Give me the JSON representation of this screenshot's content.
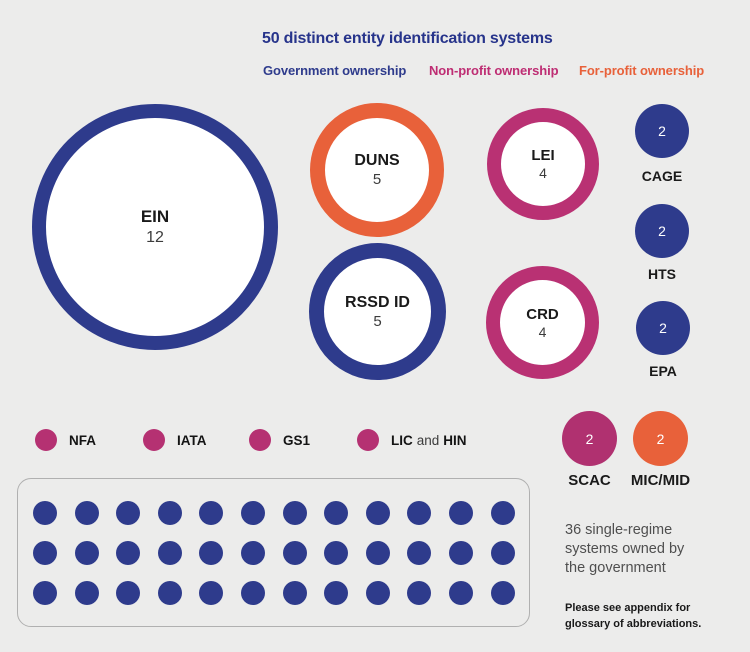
{
  "title": "50 distinct entity identification systems",
  "colors": {
    "background": "#ECECEB",
    "government_blue": "#2E3B8C",
    "non_profit_magenta": "#B93173",
    "for_profit_orange": "#E8613A",
    "title_navy": "#27348B",
    "caption_gray": "#4F4F4F",
    "label_black": "#1A1A1A",
    "grid_box_border": "#B0B0B0"
  },
  "chart_data": {
    "type": "bubble",
    "title": "50 distinct entity identification systems",
    "legend": [
      {
        "label": "Government ownership",
        "color": "#2E3B8C",
        "ownership": "government"
      },
      {
        "label": "Non-profit ownership",
        "color": "#BE2D73",
        "ownership": "non-profit"
      },
      {
        "label": "For-profit ownership",
        "color": "#E8613A",
        "ownership": "for-profit"
      }
    ],
    "bubbles": [
      {
        "id": "ein",
        "label": "EIN",
        "value": 12,
        "ownership": "government",
        "style": "ring"
      },
      {
        "id": "duns",
        "label": "DUNS",
        "value": 5,
        "ownership": "for-profit",
        "style": "ring"
      },
      {
        "id": "rssd-id",
        "label": "RSSD ID",
        "value": 5,
        "ownership": "government",
        "style": "ring"
      },
      {
        "id": "lei",
        "label": "LEI",
        "value": 4,
        "ownership": "non-profit",
        "style": "ring"
      },
      {
        "id": "crd",
        "label": "CRD",
        "value": 4,
        "ownership": "non-profit",
        "style": "ring"
      },
      {
        "id": "cage",
        "label": "CAGE",
        "value": 2,
        "ownership": "government",
        "style": "solid"
      },
      {
        "id": "hts",
        "label": "HTS",
        "value": 2,
        "ownership": "government",
        "style": "solid"
      },
      {
        "id": "epa",
        "label": "EPA",
        "value": 2,
        "ownership": "government",
        "style": "solid"
      },
      {
        "id": "scac",
        "label": "SCAC",
        "value": 2,
        "ownership": "non-profit",
        "style": "solid"
      },
      {
        "id": "mic-mid",
        "label": "MIC/MID",
        "value": 2,
        "ownership": "for-profit",
        "style": "solid"
      }
    ],
    "single_dots": [
      {
        "label": "NFA",
        "ownership": "non-profit"
      },
      {
        "label": "IATA",
        "ownership": "non-profit"
      },
      {
        "label": "GS1",
        "ownership": "non-profit"
      },
      {
        "label": "LIC and HIN",
        "label_bold_parts": [
          "LIC",
          "HIN"
        ],
        "connector": "and",
        "ownership": "non-profit"
      }
    ],
    "government_grid": {
      "count": 36,
      "rows": 3,
      "columns": 12,
      "ownership": "government",
      "caption": "36 single-regime systems owned by the government"
    }
  },
  "notes": {
    "grid_caption_lines": [
      "36 single-regime",
      "systems owned by",
      "the government"
    ],
    "appendix_lines": [
      "Please see appendix for",
      "glossary of abbreviations."
    ]
  }
}
